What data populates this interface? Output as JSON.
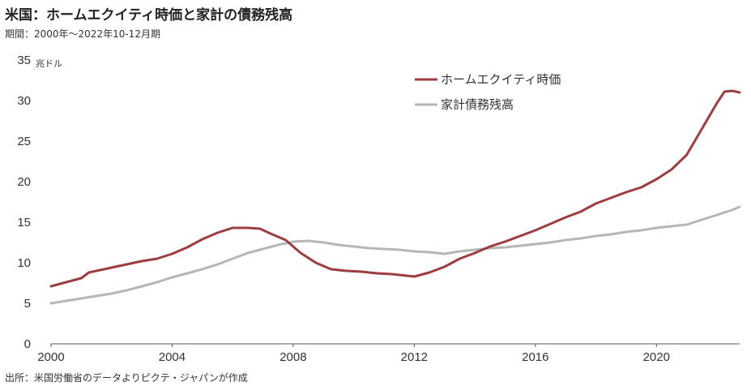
{
  "title": "米国：ホームエクイティ時価と家計の債務残高",
  "subtitle": "期間：2000年～2022年10-12月期",
  "source": "出所：米国労働省のデータよりピクテ・ジャパンが作成",
  "chart_data": {
    "type": "line",
    "ylabel": "兆ドル",
    "xlabel": "",
    "xlim": [
      2000,
      2022.75
    ],
    "ylim": [
      0,
      35
    ],
    "x_ticks": [
      "2000",
      "2004",
      "2008",
      "2012",
      "2016",
      "2020"
    ],
    "y_ticks": [
      "0",
      "5",
      "10",
      "15",
      "20",
      "25",
      "30",
      "35"
    ],
    "grid": false,
    "legend_position": "top-right",
    "series": [
      {
        "name": "ホームエクイティ時価",
        "color": "#9b3d41",
        "x": [
          2000,
          2000.5,
          2001,
          2001.25,
          2001.5,
          2002,
          2002.5,
          2003,
          2003.5,
          2004,
          2004.5,
          2005,
          2005.5,
          2006,
          2006.5,
          2006.9,
          2007.25,
          2007.75,
          2008.25,
          2008.75,
          2009.25,
          2009.75,
          2010.25,
          2010.75,
          2011.25,
          2011.75,
          2012,
          2012.5,
          2013,
          2013.5,
          2014,
          2014.5,
          2015,
          2015.5,
          2016,
          2016.5,
          2017,
          2017.5,
          2018,
          2018.5,
          2019,
          2019.5,
          2020,
          2020.5,
          2021,
          2021.5,
          2022,
          2022.25,
          2022.5,
          2022.75
        ],
        "values": [
          7.1,
          7.6,
          8.1,
          8.8,
          9.0,
          9.4,
          9.8,
          10.2,
          10.5,
          11.1,
          11.9,
          12.9,
          13.7,
          14.3,
          14.3,
          14.2,
          13.6,
          12.8,
          11.2,
          10.0,
          9.2,
          9.0,
          8.9,
          8.7,
          8.6,
          8.4,
          8.3,
          8.8,
          9.5,
          10.5,
          11.2,
          12.0,
          12.6,
          13.3,
          14.0,
          14.8,
          15.6,
          16.3,
          17.3,
          18.0,
          18.7,
          19.3,
          20.3,
          21.5,
          23.3,
          26.5,
          29.7,
          31.1,
          31.2,
          31.0
        ]
      },
      {
        "name": "家計債務残高",
        "color": "#b6b6b6",
        "x": [
          2000,
          2000.5,
          2001,
          2001.5,
          2002,
          2002.5,
          2003,
          2003.5,
          2004,
          2004.5,
          2005,
          2005.5,
          2006,
          2006.5,
          2007,
          2007.5,
          2008,
          2008.5,
          2009,
          2009.5,
          2010,
          2010.5,
          2011,
          2011.5,
          2012,
          2012.5,
          2013,
          2013.5,
          2014,
          2014.5,
          2015,
          2015.5,
          2016,
          2016.5,
          2017,
          2017.5,
          2018,
          2018.5,
          2019,
          2019.5,
          2020,
          2020.5,
          2021,
          2021.5,
          2022,
          2022.5,
          2022.75
        ],
        "values": [
          5.0,
          5.3,
          5.6,
          5.9,
          6.2,
          6.6,
          7.1,
          7.6,
          8.2,
          8.7,
          9.2,
          9.8,
          10.5,
          11.2,
          11.7,
          12.2,
          12.6,
          12.7,
          12.5,
          12.2,
          12.0,
          11.8,
          11.7,
          11.6,
          11.4,
          11.3,
          11.1,
          11.4,
          11.6,
          11.8,
          11.9,
          12.1,
          12.3,
          12.5,
          12.8,
          13.0,
          13.3,
          13.5,
          13.8,
          14.0,
          14.3,
          14.5,
          14.7,
          15.3,
          15.9,
          16.5,
          16.9
        ]
      }
    ]
  }
}
